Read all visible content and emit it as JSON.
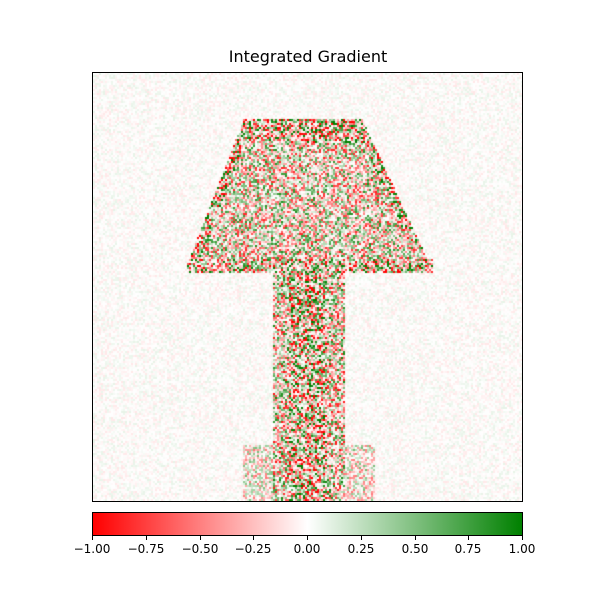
{
  "chart_data": {
    "type": "heatmap",
    "title": "Integrated Gradient",
    "xlabel": "",
    "ylabel": "",
    "x_ticks": [],
    "y_ticks": [],
    "grid": false,
    "colormap": {
      "name": "red-white-green",
      "min_color": "#ff0000",
      "mid_color": "#ffffff",
      "max_color": "#008000"
    },
    "colorbar": {
      "orientation": "horizontal",
      "placement": "bottom",
      "vmin": -1.0,
      "vmax": 1.0,
      "ticks": [
        -1.0,
        -0.75,
        -0.5,
        -0.25,
        0.0,
        0.25,
        0.5,
        0.75,
        1.0
      ],
      "tick_labels": [
        "−1.00",
        "−0.75",
        "−0.50",
        "−0.25",
        "0.00",
        "0.25",
        "0.50",
        "0.75",
        "1.00"
      ]
    },
    "depicted_shape": "lamp"
  },
  "colors": {
    "negative": "#ff0000",
    "neutral": "#ffffff",
    "positive": "#008000",
    "frame": "#000000"
  }
}
